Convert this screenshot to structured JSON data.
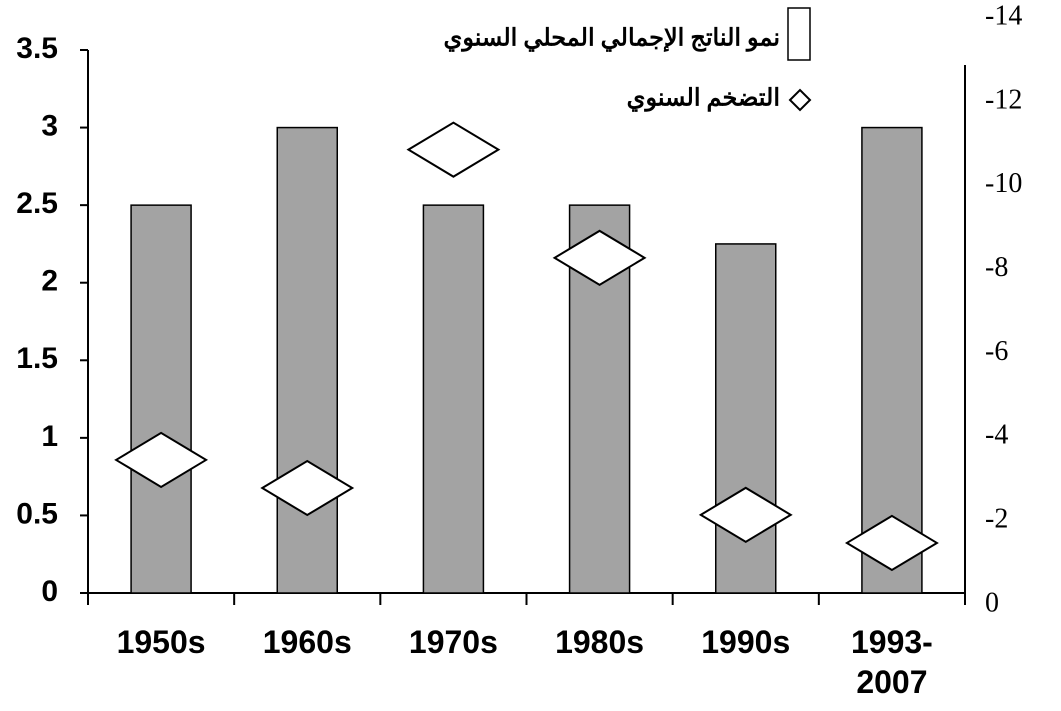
{
  "chart_data": {
    "type": "bar_scatter",
    "categories": [
      "1950s",
      "1960s",
      "1970s",
      "1980s",
      "1990s",
      "1993-2007"
    ],
    "series": [
      {
        "name": "نمو الناتج الإجمالي المحلي السنوي",
        "type": "bar",
        "color": "#a3a3a3",
        "values": [
          2.5,
          3,
          2.5,
          2.5,
          2.25,
          3
        ]
      },
      {
        "name": "التضخم السنوي",
        "type": "scatter",
        "color": "#ffffff",
        "axis": "y2",
        "values": [
          3.46,
          2.79,
          10.86,
          8.28,
          2.15,
          1.48
        ]
      }
    ],
    "ylim": [
      0,
      3.5
    ],
    "yticks": [
      0,
      0.5,
      1,
      1.5,
      2,
      2.5,
      3,
      3.5
    ],
    "y2lim": [
      0,
      14
    ],
    "y2ticks": [
      0,
      {
        "value": 2,
        "label": "-2"
      },
      {
        "value": 4,
        "label": "-4"
      },
      {
        "value": 6,
        "label": "-6"
      },
      {
        "value": 8,
        "label": "-8"
      },
      {
        "value": 10,
        "label": "-10"
      },
      {
        "value": 12,
        "label": "-12"
      },
      {
        "value": 14,
        "label": "-14"
      }
    ],
    "legend": "top-right"
  }
}
